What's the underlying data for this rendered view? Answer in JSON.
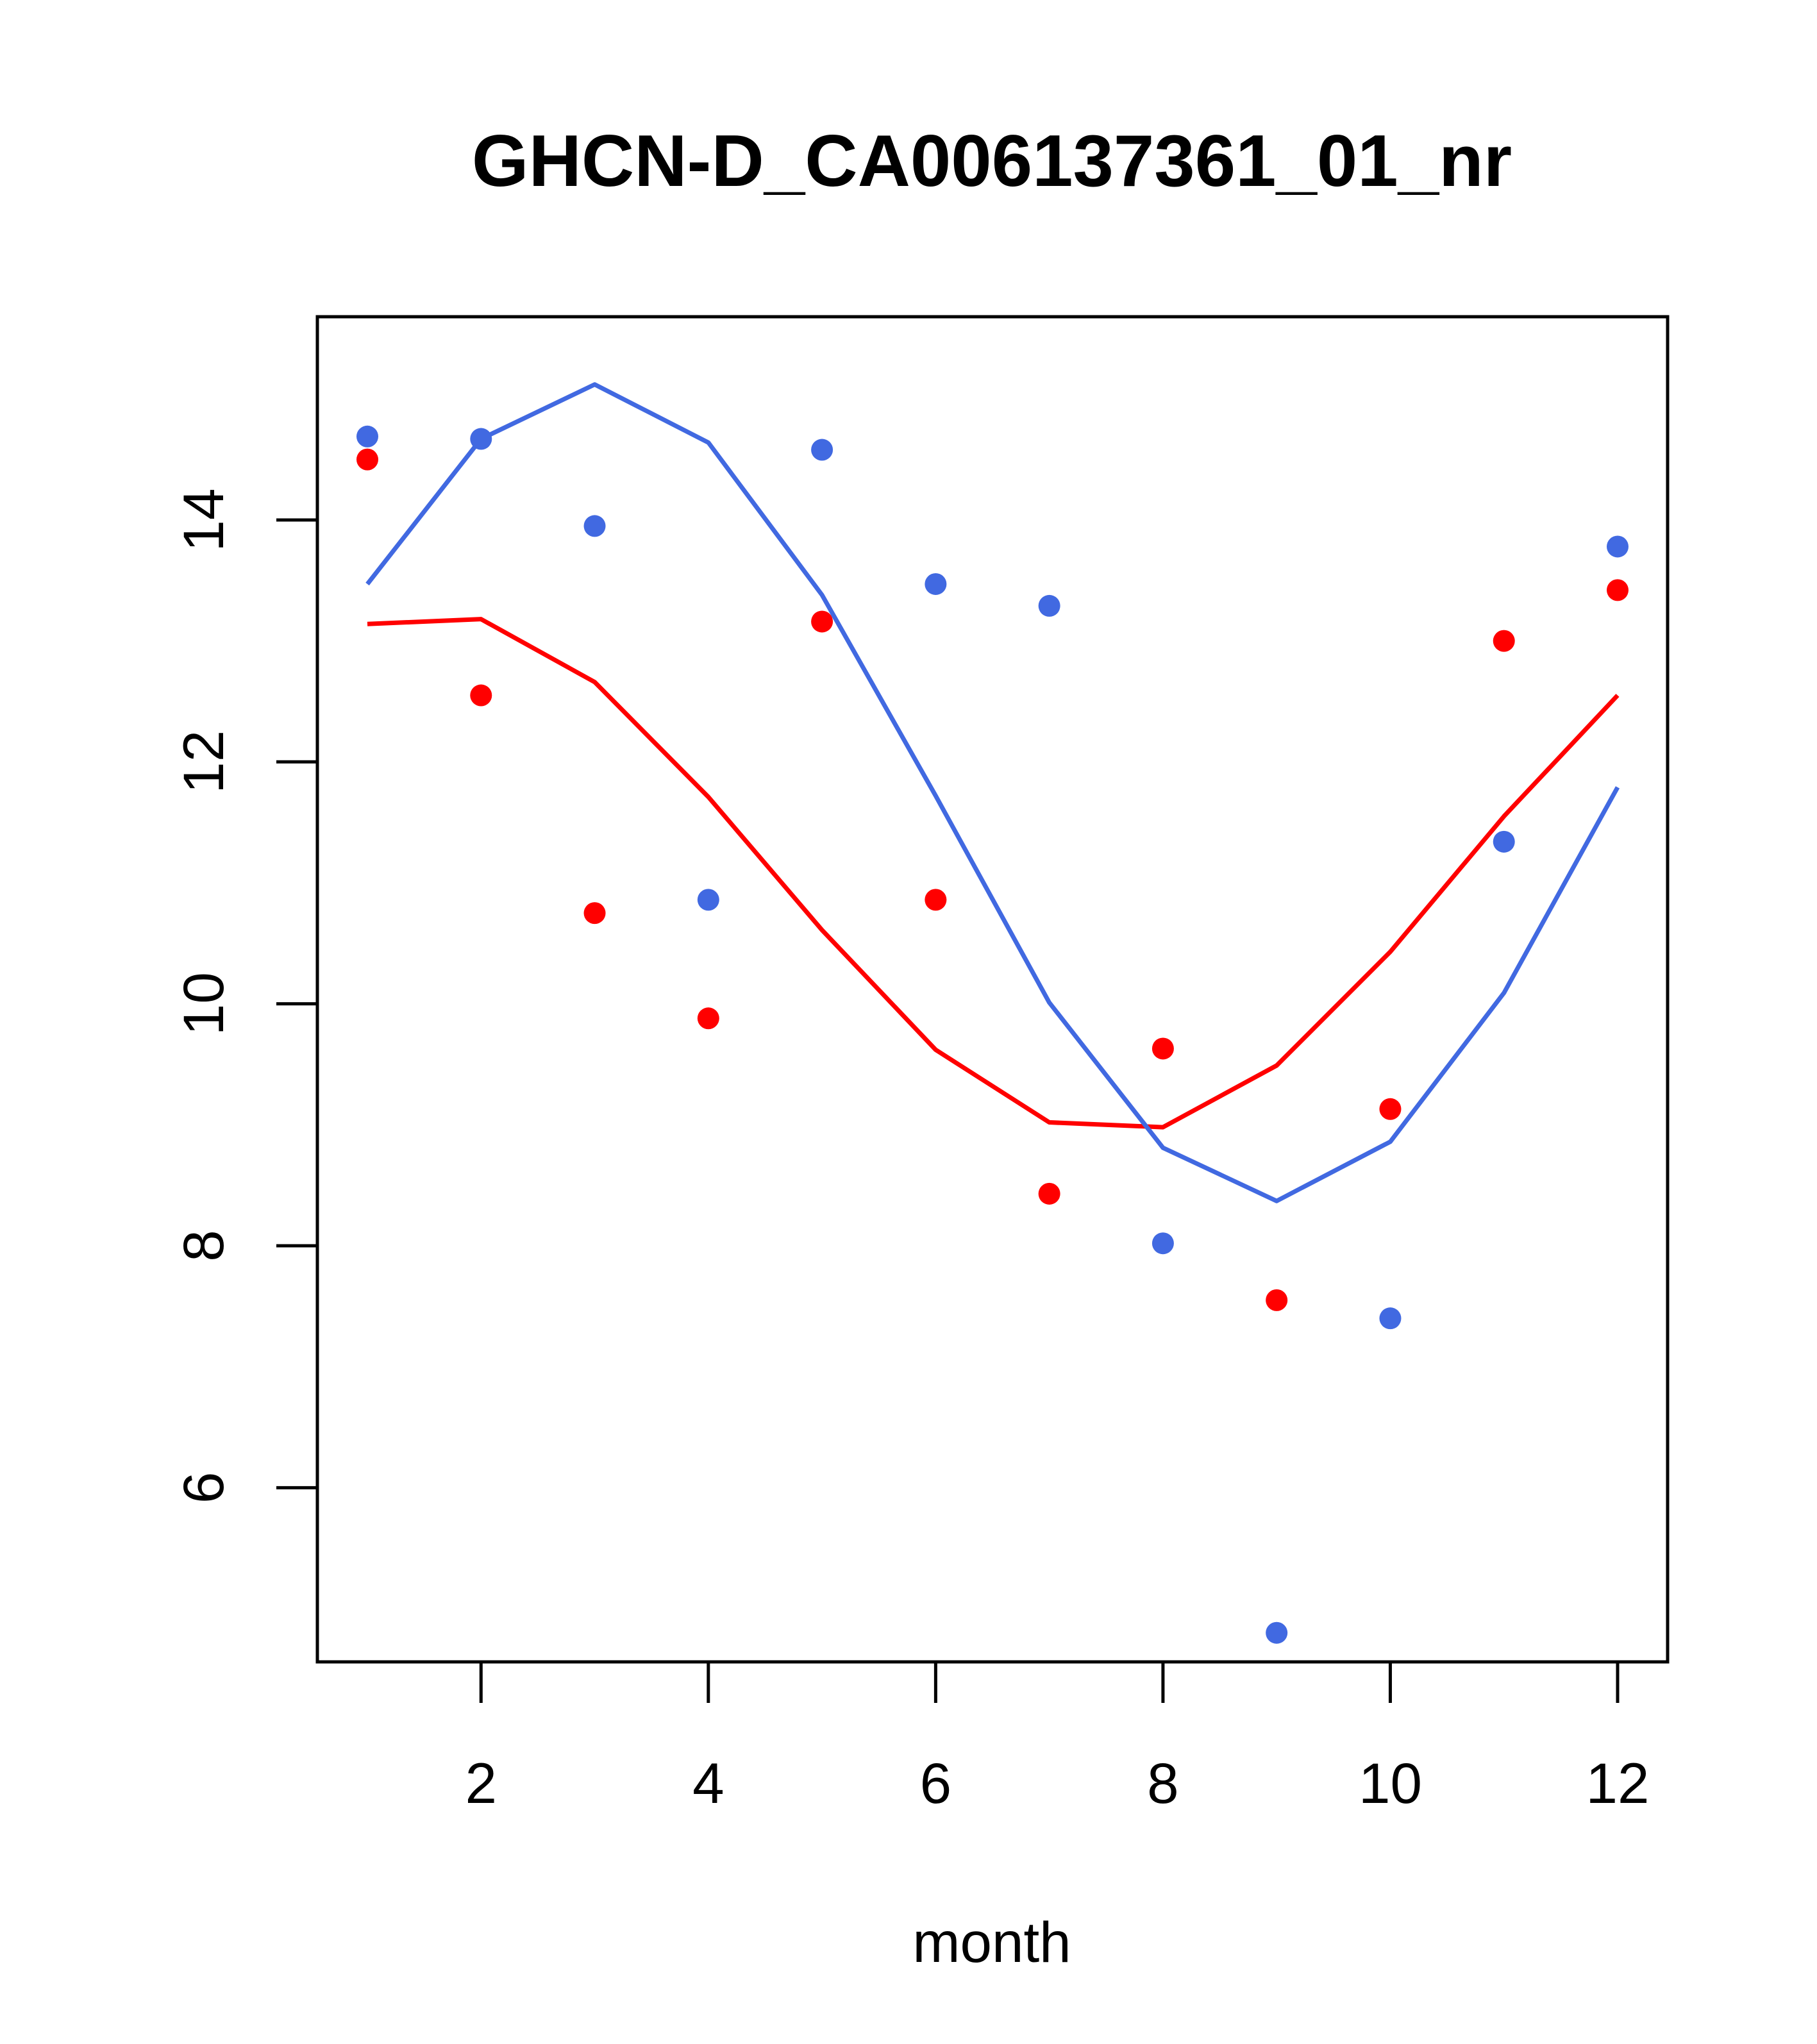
{
  "chart_data": {
    "type": "scatter",
    "title": "GHCN-D_CA006137361_01_nr",
    "xlabel": "month",
    "ylabel": "",
    "xlim": [
      0.56,
      12.44
    ],
    "ylim": [
      4.56,
      15.68
    ],
    "x_ticks": [
      2,
      4,
      6,
      8,
      10,
      12
    ],
    "y_ticks": [
      6,
      8,
      10,
      12,
      14
    ],
    "grid": false,
    "series": [
      {
        "kind": "points",
        "color": "#ff0000",
        "x": [
          1,
          2,
          3,
          4,
          5,
          6,
          7,
          8,
          9,
          10,
          11,
          12
        ],
        "y": [
          14.5,
          12.55,
          10.75,
          9.88,
          13.16,
          10.86,
          8.43,
          9.63,
          7.55,
          9.13,
          13.0,
          13.42
        ]
      },
      {
        "kind": "points",
        "color": "#4169e1",
        "x": [
          1,
          2,
          3,
          4,
          5,
          6,
          7,
          8,
          9,
          10,
          11,
          12
        ],
        "y": [
          14.69,
          14.67,
          13.95,
          10.86,
          14.58,
          13.47,
          13.29,
          8.02,
          4.8,
          7.4,
          11.34,
          13.78
        ]
      },
      {
        "kind": "line",
        "color": "#ff0000",
        "x": [
          1,
          2,
          3,
          4,
          5,
          6,
          7,
          8,
          9,
          10,
          11,
          12
        ],
        "y": [
          13.14,
          13.18,
          12.66,
          11.71,
          10.61,
          9.62,
          9.02,
          8.98,
          9.49,
          10.43,
          11.55,
          12.55
        ]
      },
      {
        "kind": "line",
        "color": "#4169e1",
        "x": [
          1,
          2,
          3,
          4,
          5,
          6,
          7,
          8,
          9,
          10,
          11,
          12
        ],
        "y": [
          13.47,
          14.67,
          15.12,
          14.64,
          13.38,
          11.72,
          10.01,
          8.81,
          8.37,
          8.86,
          10.09,
          11.79
        ]
      }
    ]
  }
}
